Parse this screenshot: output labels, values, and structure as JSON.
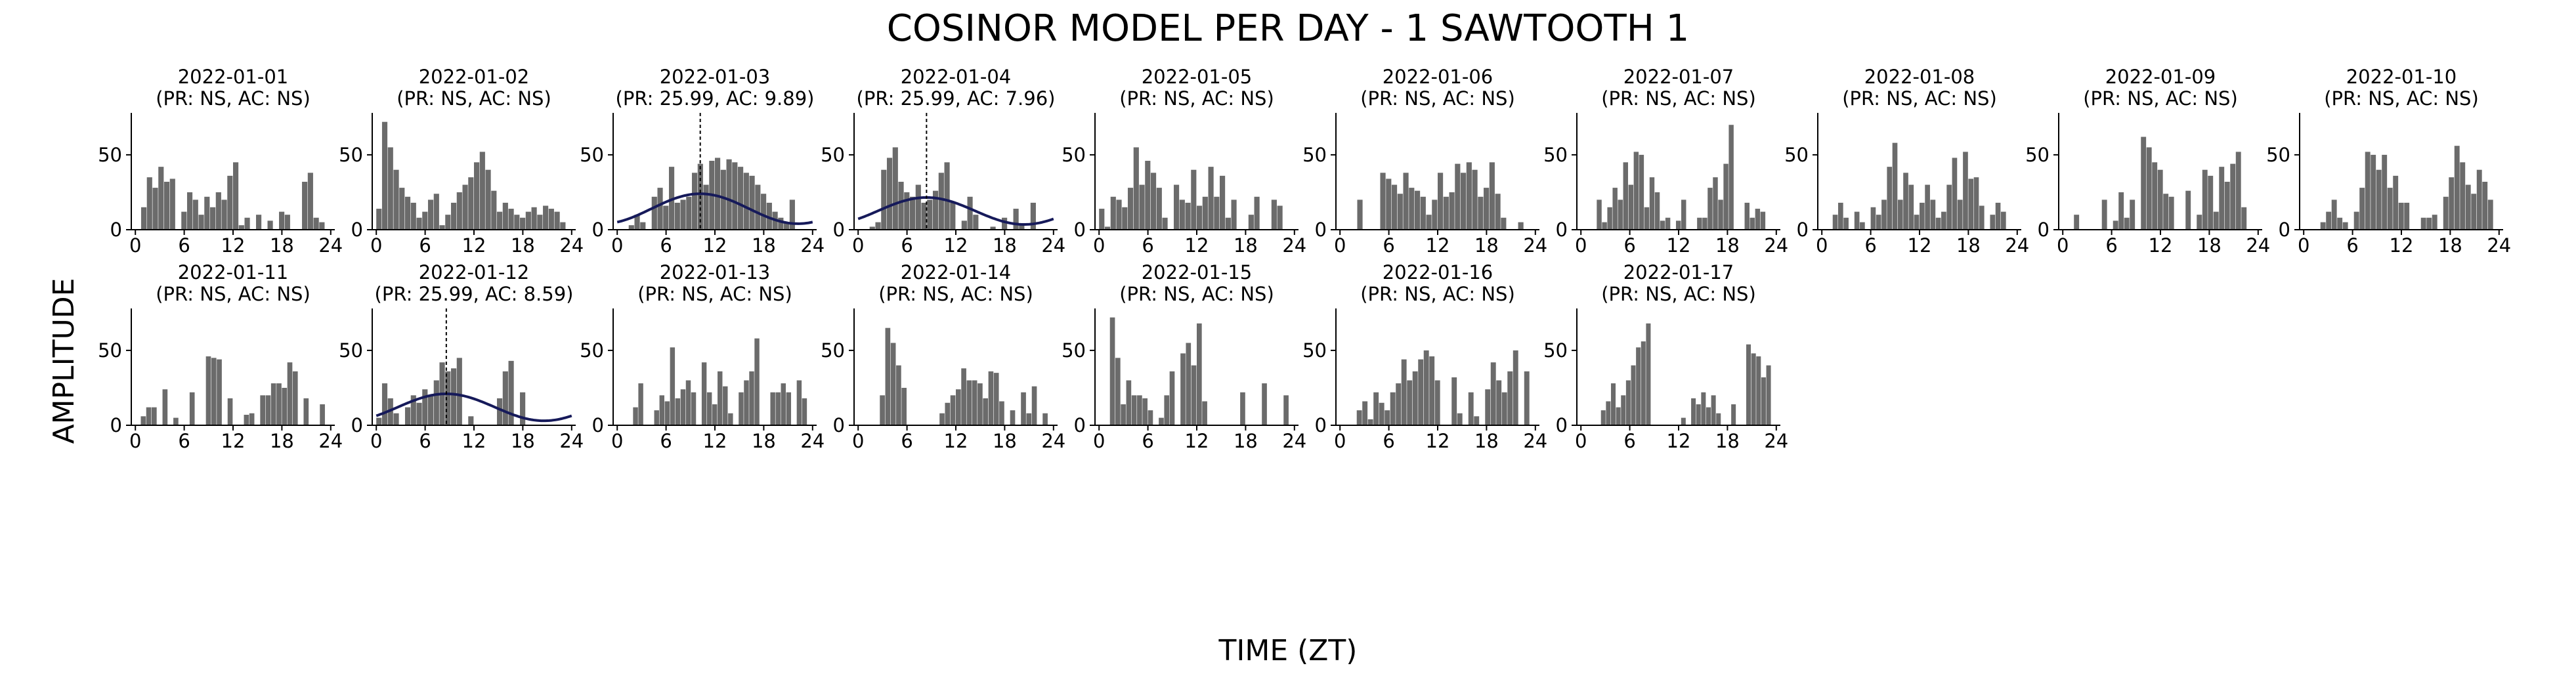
{
  "figure": {
    "title": "COSINOR MODEL PER DAY - 1 SAWTOOTH 1",
    "xlabel": "TIME (ZT)",
    "ylabel": "AMPLITUDE",
    "colors": {
      "bars": "#6b6b6b",
      "fit": "#161a5a",
      "phase_line": "#000000"
    }
  },
  "chart_data": {
    "type": "bar",
    "layout": "small multiples, 2 rows",
    "x_ticks": [
      0,
      6,
      12,
      18,
      24
    ],
    "y_ticks": [
      0,
      50
    ],
    "xlim": [
      -0.5,
      24.5
    ],
    "ylim": [
      0,
      78
    ],
    "panels": [
      {
        "title": "2022-01-01",
        "subtitle": "(PR: NS, AC: NS)",
        "fit": null,
        "values": [
          0,
          15,
          35,
          28,
          42,
          32,
          34,
          0,
          12,
          25,
          20,
          10,
          22,
          15,
          25,
          20,
          36,
          45,
          3,
          8,
          0,
          10,
          0,
          6,
          0,
          12,
          10,
          0,
          0,
          32,
          38,
          8,
          5,
          0
        ]
      },
      {
        "title": "2022-01-02",
        "subtitle": "(PR: NS, AC: NS)",
        "fit": null,
        "values": [
          14,
          72,
          55,
          40,
          28,
          22,
          18,
          8,
          12,
          20,
          24,
          3,
          10,
          18,
          25,
          30,
          35,
          45,
          52,
          40,
          26,
          12,
          18,
          14,
          10,
          8,
          12,
          15,
          10,
          16,
          14,
          12,
          5,
          0
        ]
      },
      {
        "title": "2022-01-03",
        "subtitle": "(PR: 25.99, AC: 9.89)",
        "fit": {
          "mesor": 14,
          "amplitude": 10,
          "acrophase": 10.2
        },
        "values": [
          0,
          0,
          3,
          10,
          5,
          0,
          22,
          28,
          16,
          42,
          18,
          20,
          22,
          38,
          44,
          30,
          46,
          48,
          40,
          47,
          45,
          42,
          38,
          36,
          30,
          24,
          18,
          12,
          8,
          5,
          20,
          0,
          0,
          0
        ]
      },
      {
        "title": "2022-01-04",
        "subtitle": "(PR: 25.99, AC: 7.96)",
        "fit": {
          "mesor": 12.5,
          "amplitude": 9,
          "acrophase": 8.4
        },
        "values": [
          0,
          0,
          2,
          5,
          40,
          48,
          55,
          32,
          25,
          22,
          30,
          18,
          20,
          26,
          38,
          45,
          18,
          0,
          6,
          22,
          10,
          0,
          0,
          2,
          0,
          8,
          0,
          14,
          3,
          0,
          18,
          0,
          0,
          0
        ]
      },
      {
        "title": "2022-01-05",
        "subtitle": "(PR: NS, AC: NS)",
        "fit": null,
        "values": [
          14,
          2,
          22,
          20,
          15,
          28,
          55,
          30,
          46,
          38,
          28,
          8,
          0,
          30,
          20,
          18,
          40,
          16,
          22,
          42,
          22,
          36,
          8,
          20,
          0,
          0,
          10,
          22,
          0,
          0,
          20,
          16,
          0,
          0
        ]
      },
      {
        "title": "2022-01-06",
        "subtitle": "(PR: NS, AC: NS)",
        "fit": null,
        "values": [
          0,
          0,
          0,
          20,
          0,
          0,
          0,
          38,
          34,
          30,
          24,
          38,
          28,
          26,
          22,
          10,
          20,
          38,
          22,
          25,
          44,
          38,
          45,
          40,
          22,
          28,
          45,
          24,
          8,
          0,
          0,
          5,
          0,
          0
        ]
      },
      {
        "title": "2022-01-07",
        "subtitle": "(PR: NS, AC: NS)",
        "fit": null,
        "values": [
          0,
          0,
          0,
          20,
          5,
          15,
          28,
          20,
          45,
          30,
          52,
          50,
          15,
          35,
          25,
          6,
          8,
          0,
          6,
          20,
          0,
          0,
          8,
          8,
          28,
          35,
          20,
          44,
          70,
          0,
          0,
          18,
          8,
          14,
          12,
          0,
          0
        ]
      },
      {
        "title": "2022-01-08",
        "subtitle": "(PR: NS, AC: NS)",
        "fit": null,
        "values": [
          0,
          0,
          10,
          18,
          8,
          0,
          12,
          5,
          0,
          15,
          10,
          20,
          42,
          58,
          20,
          38,
          30,
          10,
          18,
          30,
          20,
          8,
          12,
          30,
          48,
          20,
          52,
          34,
          35,
          16,
          0,
          10,
          18,
          12,
          0,
          0
        ]
      },
      {
        "title": "2022-01-09",
        "subtitle": "(PR: NS, AC: NS)",
        "fit": null,
        "values": [
          0,
          0,
          10,
          0,
          0,
          0,
          0,
          20,
          0,
          6,
          25,
          8,
          20,
          0,
          62,
          55,
          45,
          40,
          24,
          22,
          0,
          0,
          26,
          0,
          10,
          40,
          36,
          12,
          42,
          32,
          44,
          52,
          15,
          0,
          0
        ]
      },
      {
        "title": "2022-01-10",
        "subtitle": "(PR: NS, AC: NS)",
        "fit": null,
        "values": [
          0,
          0,
          0,
          5,
          12,
          20,
          8,
          5,
          0,
          12,
          28,
          52,
          50,
          40,
          50,
          28,
          36,
          18,
          18,
          0,
          0,
          8,
          8,
          10,
          0,
          22,
          35,
          56,
          45,
          30,
          24,
          40,
          32,
          20,
          0
        ]
      },
      {
        "title": "2022-01-11",
        "subtitle": "(PR: NS, AC: NS)",
        "fit": null,
        "values": [
          0,
          6,
          12,
          12,
          0,
          24,
          0,
          5,
          0,
          0,
          22,
          0,
          0,
          46,
          45,
          44,
          0,
          18,
          0,
          0,
          7,
          8,
          0,
          20,
          20,
          28,
          28,
          25,
          42,
          36,
          0,
          18,
          0,
          0,
          14,
          0
        ]
      },
      {
        "title": "2022-01-12",
        "subtitle": "(PR: 25.99, AC: 8.59)",
        "fit": {
          "mesor": 12,
          "amplitude": 9,
          "acrophase": 8.6
        },
        "values": [
          5,
          28,
          18,
          8,
          0,
          12,
          20,
          15,
          24,
          20,
          30,
          42,
          36,
          38,
          45,
          0,
          6,
          0,
          0,
          0,
          0,
          18,
          36,
          43,
          0,
          22,
          0,
          0,
          0,
          0,
          0,
          0,
          0,
          0
        ]
      },
      {
        "title": "2022-01-13",
        "subtitle": "(PR: NS, AC: NS)",
        "fit": null,
        "values": [
          0,
          0,
          0,
          12,
          28,
          0,
          0,
          10,
          20,
          16,
          52,
          18,
          24,
          30,
          22,
          0,
          42,
          22,
          14,
          36,
          26,
          8,
          0,
          22,
          30,
          36,
          58,
          0,
          0,
          22,
          22,
          28,
          22,
          0,
          30,
          18,
          0
        ]
      },
      {
        "title": "2022-01-14",
        "subtitle": "(PR: NS, AC: NS)",
        "fit": null,
        "values": [
          0,
          0,
          0,
          0,
          20,
          65,
          55,
          40,
          25,
          0,
          0,
          0,
          0,
          0,
          0,
          8,
          15,
          20,
          24,
          38,
          30,
          30,
          28,
          18,
          36,
          35,
          16,
          0,
          10,
          0,
          22,
          8,
          26,
          0,
          8,
          0
        ]
      },
      {
        "title": "2022-01-15",
        "subtitle": "(PR: NS, AC: NS)",
        "fit": null,
        "values": [
          0,
          0,
          72,
          45,
          14,
          30,
          20,
          20,
          18,
          10,
          0,
          5,
          20,
          36,
          0,
          48,
          55,
          40,
          68,
          16,
          0,
          0,
          0,
          0,
          0,
          0,
          22,
          0,
          0,
          0,
          28,
          0,
          0,
          0,
          20,
          0
        ]
      },
      {
        "title": "2022-01-16",
        "subtitle": "(PR: NS, AC: NS)",
        "fit": null,
        "values": [
          0,
          0,
          0,
          10,
          16,
          4,
          22,
          15,
          10,
          22,
          28,
          44,
          30,
          36,
          44,
          50,
          46,
          30,
          0,
          0,
          32,
          8,
          0,
          22,
          6,
          0,
          24,
          42,
          30,
          22,
          36,
          50,
          0,
          36,
          0
        ]
      },
      {
        "title": "2022-01-17",
        "subtitle": "(PR: NS, AC: NS)",
        "fit": null,
        "values": [
          0,
          0,
          0,
          0,
          10,
          16,
          28,
          12,
          20,
          30,
          40,
          52,
          56,
          68,
          0,
          0,
          0,
          0,
          0,
          0,
          5,
          0,
          18,
          14,
          22,
          12,
          20,
          8,
          0,
          0,
          14,
          0,
          0,
          54,
          48,
          46,
          32,
          40,
          0
        ]
      }
    ]
  }
}
